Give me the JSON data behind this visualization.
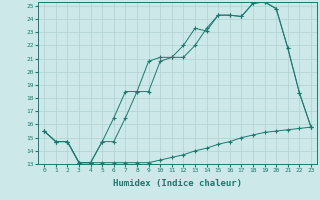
{
  "xlabel": "Humidex (Indice chaleur)",
  "bg_color": "#cde8e8",
  "line_color": "#1a7a6e",
  "grid_color": "#b0d0d0",
  "xlim": [
    -0.5,
    23.5
  ],
  "ylim": [
    13,
    25.3
  ],
  "xticks": [
    0,
    1,
    2,
    3,
    4,
    5,
    6,
    7,
    8,
    9,
    10,
    11,
    12,
    13,
    14,
    15,
    16,
    17,
    18,
    19,
    20,
    21,
    22,
    23
  ],
  "yticks": [
    13,
    14,
    15,
    16,
    17,
    18,
    19,
    20,
    21,
    22,
    23,
    24,
    25
  ],
  "line1_x": [
    0,
    1,
    2,
    3,
    4,
    5,
    6,
    7,
    8,
    9,
    10,
    11,
    12,
    13,
    14,
    15,
    16,
    17,
    18,
    19,
    20,
    21,
    22,
    23
  ],
  "line1_y": [
    15.5,
    14.7,
    14.7,
    13.1,
    13.1,
    13.1,
    13.1,
    13.1,
    13.1,
    13.1,
    13.3,
    13.5,
    13.7,
    14.0,
    14.2,
    14.5,
    14.7,
    15.0,
    15.2,
    15.4,
    15.5,
    15.6,
    15.7,
    15.8
  ],
  "line2_x": [
    0,
    1,
    2,
    3,
    4,
    5,
    6,
    7,
    8,
    9,
    10,
    11,
    12,
    13,
    14,
    15,
    16,
    17,
    18,
    19,
    20,
    21,
    22,
    23
  ],
  "line2_y": [
    15.5,
    14.7,
    14.7,
    13.1,
    13.1,
    14.7,
    16.5,
    18.5,
    18.5,
    20.8,
    21.1,
    21.1,
    22.0,
    23.3,
    23.1,
    24.3,
    24.3,
    24.2,
    25.2,
    25.3,
    24.8,
    21.8,
    18.4,
    15.8
  ],
  "line3_x": [
    0,
    1,
    2,
    3,
    4,
    5,
    6,
    7,
    8,
    9,
    10,
    11,
    12,
    13,
    14,
    15,
    16,
    17,
    18,
    19,
    20,
    21,
    22,
    23
  ],
  "line3_y": [
    15.5,
    14.7,
    14.7,
    13.1,
    13.1,
    14.7,
    14.7,
    16.5,
    18.5,
    18.5,
    20.8,
    21.1,
    21.1,
    22.0,
    23.3,
    24.3,
    24.3,
    24.2,
    25.2,
    25.3,
    24.8,
    21.8,
    18.4,
    15.8
  ]
}
